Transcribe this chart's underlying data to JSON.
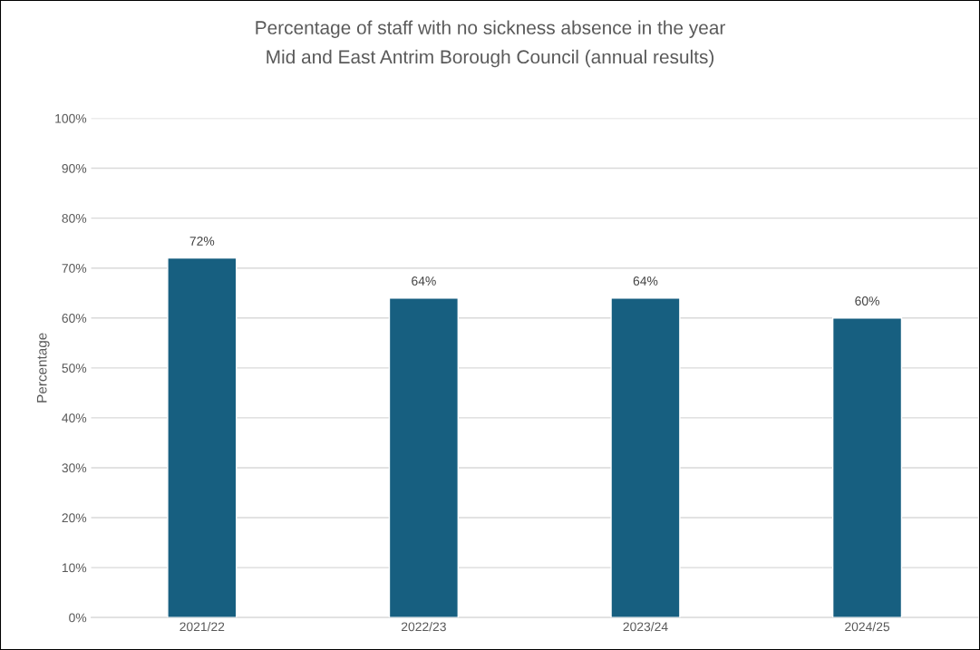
{
  "chart_data": {
    "type": "bar",
    "title": "Percentage of staff with no sickness absence in the year",
    "subtitle": "Mid and East Antrim Borough Council (annual results)",
    "ylabel": "Percentage",
    "categories": [
      "2021/22",
      "2022/23",
      "2023/24",
      "2024/25"
    ],
    "values": [
      72,
      64,
      64,
      60
    ],
    "value_labels": [
      "72%",
      "64%",
      "64%",
      "60%"
    ],
    "color": "#175f80",
    "ylim": [
      0,
      100
    ],
    "yticks": [
      {
        "value": 0,
        "label": "0%"
      },
      {
        "value": 10,
        "label": "10%"
      },
      {
        "value": 20,
        "label": "20%"
      },
      {
        "value": 30,
        "label": "30%"
      },
      {
        "value": 40,
        "label": "40%"
      },
      {
        "value": 50,
        "label": "50%"
      },
      {
        "value": 60,
        "label": "60%"
      },
      {
        "value": 70,
        "label": "70%"
      },
      {
        "value": 80,
        "label": "80%"
      },
      {
        "value": 90,
        "label": "90%"
      },
      {
        "value": 100,
        "label": "100%"
      }
    ],
    "grid": "y"
  }
}
